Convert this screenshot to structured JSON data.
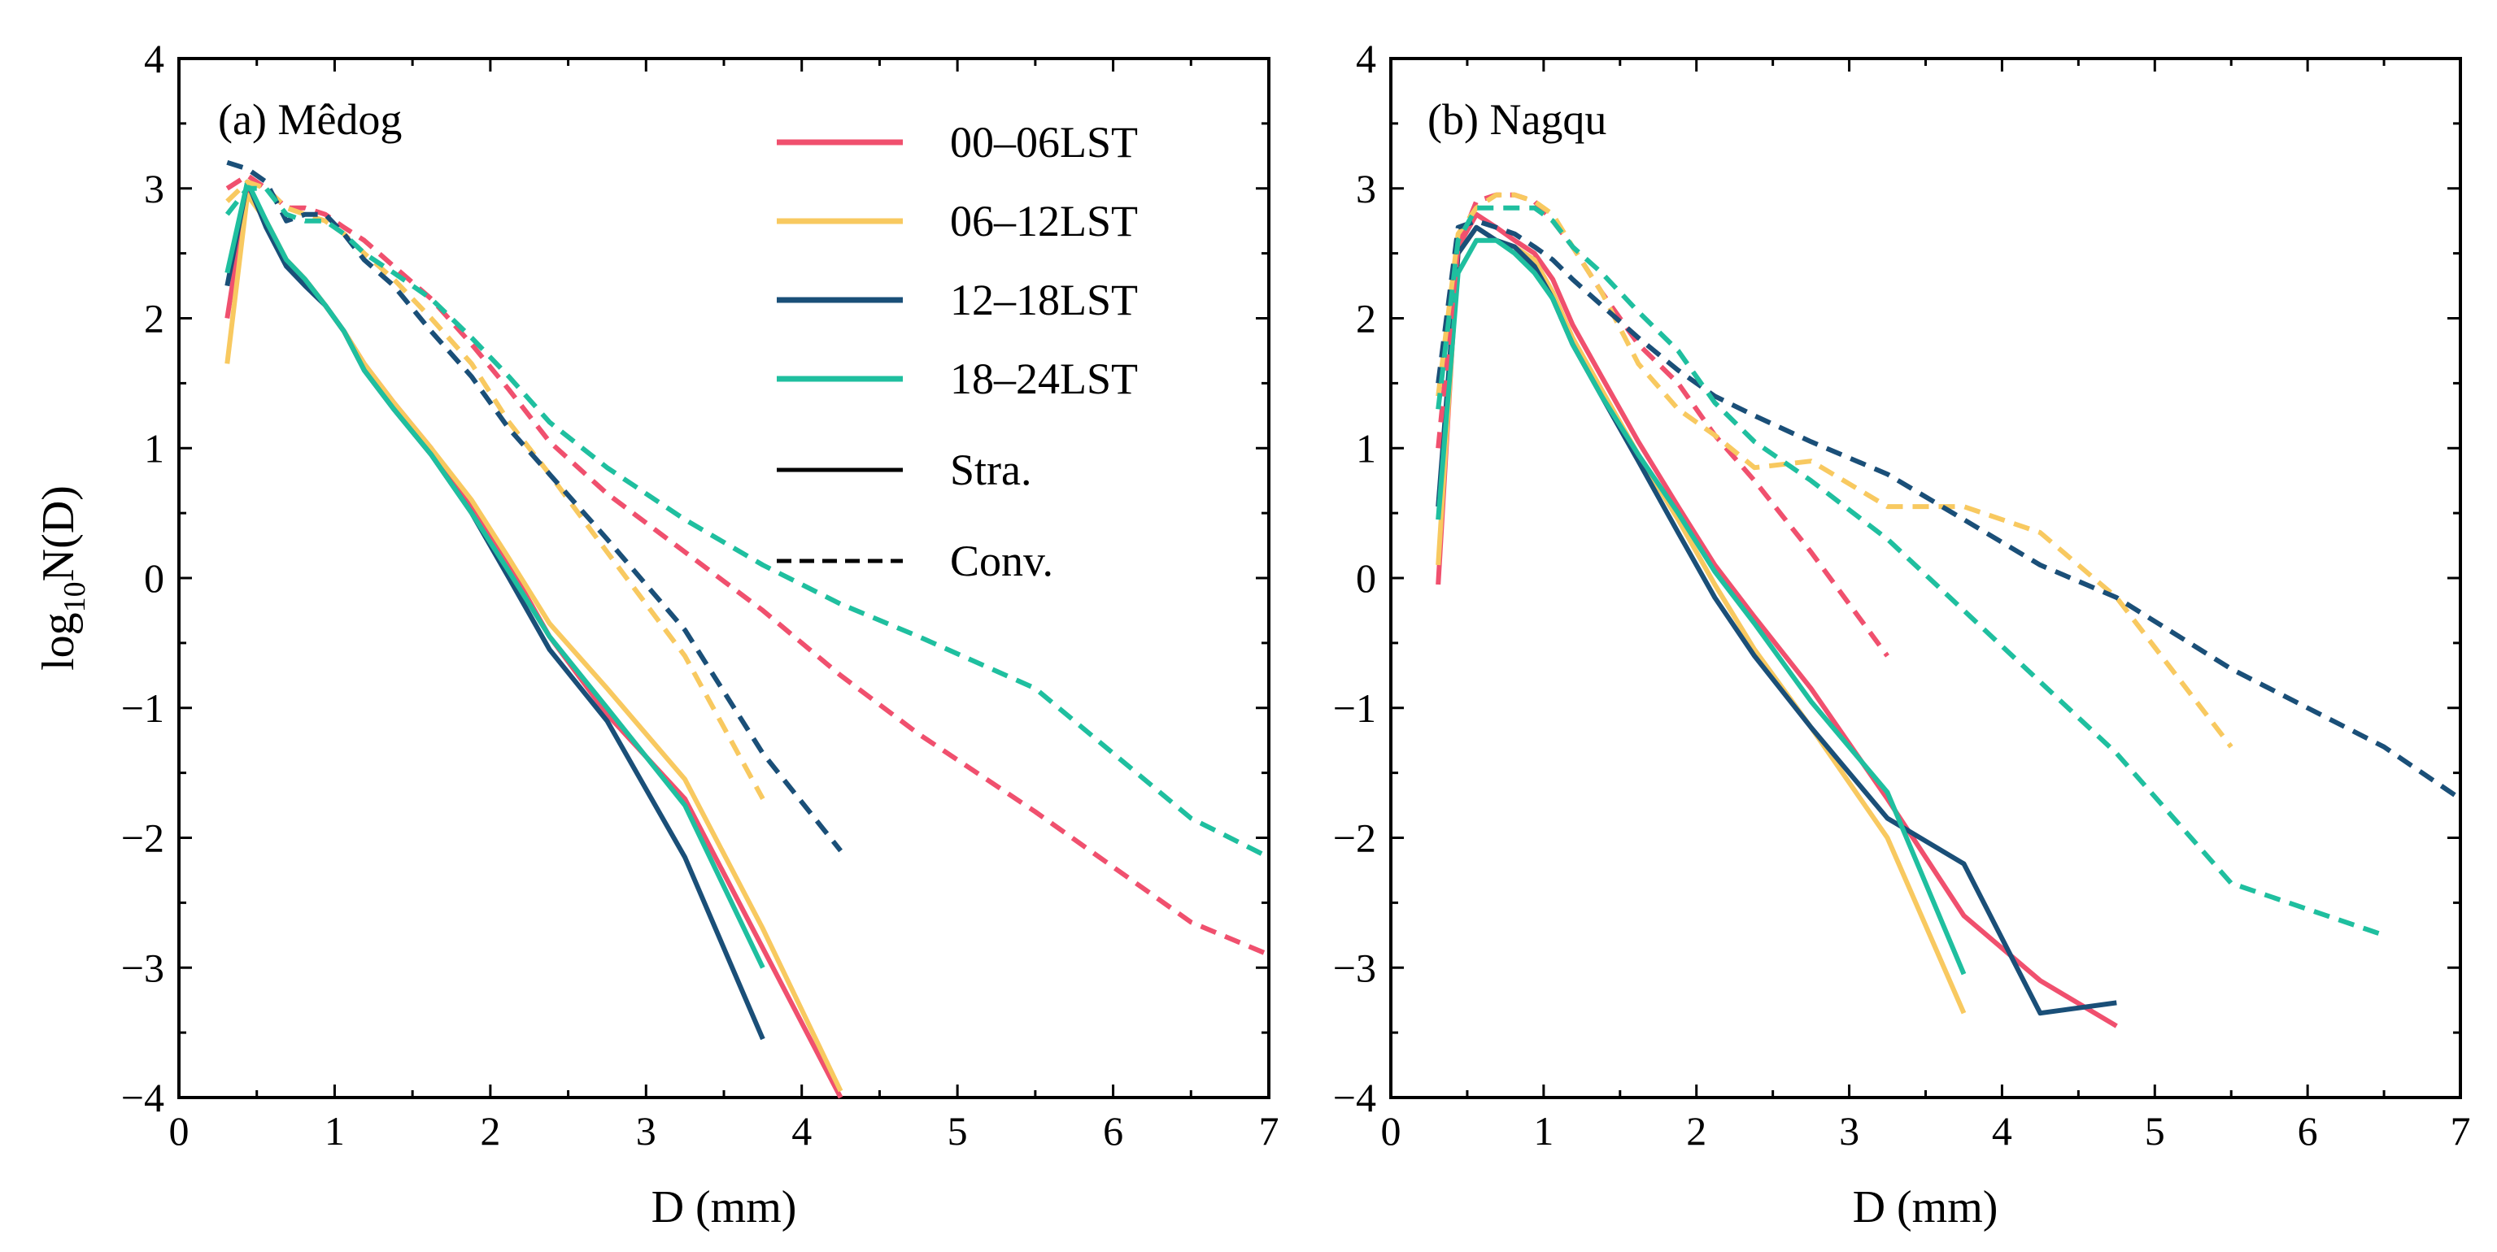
{
  "chart_data": [
    {
      "type": "line",
      "panel": "(a) Mêdog",
      "xlabel": "D (mm)",
      "ylabel_base": "log",
      "ylabel_sub": "10",
      "ylabel_rest": "N(D)",
      "xlim": [
        0,
        7
      ],
      "ylim": [
        -4,
        4
      ],
      "xticks": [
        0,
        1,
        2,
        3,
        4,
        5,
        6,
        7
      ],
      "yticks": [
        -4,
        -3,
        -2,
        -1,
        0,
        1,
        2,
        3,
        4
      ],
      "ytick_labels": [
        "−4",
        "−3",
        "−2",
        "−1",
        "0",
        "1",
        "2",
        "3",
        "4"
      ],
      "legend": [
        {
          "label": "00–06LST",
          "color": "#f0506e",
          "style": "solid"
        },
        {
          "label": "06–12LST",
          "color": "#f8c960",
          "style": "solid"
        },
        {
          "label": "12–18LST",
          "color": "#1a4f78",
          "style": "solid"
        },
        {
          "label": "18–24LST",
          "color": "#1fbf9f",
          "style": "solid"
        },
        {
          "label": "Stra.",
          "color": "#000000",
          "style": "solid"
        },
        {
          "label": "Conv.",
          "color": "#000000",
          "style": "dashed"
        }
      ],
      "series": [
        {
          "name": "00–06LST Stra.",
          "color": "#f0506e",
          "style": "solid",
          "x": [
            0.31,
            0.44,
            0.56,
            0.69,
            0.81,
            0.94,
            1.06,
            1.19,
            1.38,
            1.62,
            1.88,
            2.12,
            2.38,
            2.75,
            3.25,
            3.75,
            4.25
          ],
          "y": [
            2.0,
            3.0,
            2.75,
            2.45,
            2.3,
            2.1,
            1.9,
            1.65,
            1.35,
            1.0,
            0.55,
            0.1,
            -0.45,
            -1.05,
            -1.7,
            -2.85,
            -4.0
          ]
        },
        {
          "name": "06–12LST Stra.",
          "color": "#f8c960",
          "style": "solid",
          "x": [
            0.31,
            0.44,
            0.56,
            0.69,
            0.81,
            0.94,
            1.06,
            1.19,
            1.38,
            1.62,
            1.88,
            2.12,
            2.38,
            2.75,
            3.25,
            3.75,
            4.25
          ],
          "y": [
            1.65,
            2.95,
            2.75,
            2.45,
            2.3,
            2.1,
            1.9,
            1.65,
            1.35,
            1.0,
            0.6,
            0.15,
            -0.35,
            -0.85,
            -1.55,
            -2.7,
            -3.95
          ]
        },
        {
          "name": "12–18LST Stra.",
          "color": "#1a4f78",
          "style": "solid",
          "x": [
            0.31,
            0.44,
            0.56,
            0.69,
            0.81,
            0.94,
            1.06,
            1.19,
            1.38,
            1.62,
            1.88,
            2.12,
            2.38,
            2.75,
            3.25,
            3.75
          ],
          "y": [
            2.25,
            3.05,
            2.7,
            2.4,
            2.25,
            2.1,
            1.9,
            1.6,
            1.3,
            0.95,
            0.5,
            0.0,
            -0.55,
            -1.1,
            -2.15,
            -3.55
          ]
        },
        {
          "name": "18–24LST Stra.",
          "color": "#1fbf9f",
          "style": "solid",
          "x": [
            0.31,
            0.44,
            0.56,
            0.69,
            0.81,
            0.94,
            1.06,
            1.19,
            1.38,
            1.62,
            1.88,
            2.12,
            2.38,
            2.75,
            3.25,
            3.75
          ],
          "y": [
            2.35,
            3.05,
            2.75,
            2.45,
            2.3,
            2.1,
            1.9,
            1.6,
            1.3,
            0.95,
            0.5,
            0.05,
            -0.45,
            -1.0,
            -1.75,
            -3.0
          ]
        },
        {
          "name": "00–06LST Conv.",
          "color": "#f0506e",
          "style": "dashed",
          "x": [
            0.31,
            0.44,
            0.56,
            0.69,
            0.81,
            0.94,
            1.06,
            1.19,
            1.38,
            1.62,
            1.88,
            2.12,
            2.38,
            2.75,
            3.25,
            3.75,
            4.25,
            4.75,
            5.5,
            6.5,
            7.0
          ],
          "y": [
            3.0,
            3.1,
            3.0,
            2.85,
            2.85,
            2.8,
            2.7,
            2.6,
            2.4,
            2.15,
            1.8,
            1.45,
            1.05,
            0.65,
            0.2,
            -0.25,
            -0.75,
            -1.2,
            -1.8,
            -2.65,
            -2.9
          ]
        },
        {
          "name": "06–12LST Conv.",
          "color": "#f8c960",
          "style": "dashed",
          "x": [
            0.31,
            0.44,
            0.56,
            0.69,
            0.81,
            0.94,
            1.06,
            1.19,
            1.38,
            1.62,
            1.88,
            2.12,
            2.38,
            2.75,
            3.25,
            3.75
          ],
          "y": [
            2.9,
            3.05,
            3.0,
            2.85,
            2.8,
            2.75,
            2.65,
            2.5,
            2.3,
            2.0,
            1.65,
            1.2,
            0.8,
            0.2,
            -0.6,
            -1.7
          ]
        },
        {
          "name": "12–18LST Conv.",
          "color": "#1a4f78",
          "style": "dashed",
          "x": [
            0.31,
            0.44,
            0.56,
            0.69,
            0.81,
            0.94,
            1.06,
            1.19,
            1.38,
            1.62,
            1.88,
            2.12,
            2.38,
            2.75,
            3.25,
            3.75,
            4.25
          ],
          "y": [
            3.2,
            3.15,
            3.05,
            2.75,
            2.8,
            2.8,
            2.65,
            2.45,
            2.25,
            1.9,
            1.55,
            1.15,
            0.8,
            0.3,
            -0.4,
            -1.35,
            -2.1
          ]
        },
        {
          "name": "18–24LST Conv.",
          "color": "#1fbf9f",
          "style": "dashed",
          "x": [
            0.31,
            0.44,
            0.56,
            0.69,
            0.81,
            0.94,
            1.06,
            1.19,
            1.38,
            1.62,
            1.88,
            2.12,
            2.38,
            2.75,
            3.25,
            3.75,
            4.25,
            4.75,
            5.5,
            6.5,
            7.0
          ],
          "y": [
            2.8,
            3.0,
            3.0,
            2.8,
            2.75,
            2.75,
            2.65,
            2.5,
            2.35,
            2.15,
            1.85,
            1.55,
            1.2,
            0.85,
            0.45,
            0.1,
            -0.2,
            -0.45,
            -0.85,
            -1.85,
            -2.15
          ]
        }
      ]
    },
    {
      "type": "line",
      "panel": "(b) Nagqu",
      "xlabel": "D (mm)",
      "xlim": [
        0,
        7
      ],
      "ylim": [
        -4,
        4
      ],
      "xticks": [
        0,
        1,
        2,
        3,
        4,
        5,
        6,
        7
      ],
      "yticks": [
        -4,
        -3,
        -2,
        -1,
        0,
        1,
        2,
        3,
        4
      ],
      "ytick_labels": [
        "−4",
        "−3",
        "−2",
        "−1",
        "0",
        "1",
        "2",
        "3",
        "4"
      ],
      "series": [
        {
          "name": "00–06LST Stra.",
          "color": "#f0506e",
          "style": "solid",
          "x": [
            0.31,
            0.44,
            0.56,
            0.69,
            0.81,
            0.94,
            1.06,
            1.19,
            1.38,
            1.62,
            1.88,
            2.12,
            2.38,
            2.75,
            3.25,
            3.75,
            4.25,
            4.75
          ],
          "y": [
            -0.05,
            2.55,
            2.8,
            2.7,
            2.6,
            2.5,
            2.3,
            1.95,
            1.55,
            1.05,
            0.55,
            0.1,
            -0.3,
            -0.85,
            -1.7,
            -2.6,
            -3.1,
            -3.45
          ]
        },
        {
          "name": "06–12LST Stra.",
          "color": "#f8c960",
          "style": "solid",
          "x": [
            0.31,
            0.44,
            0.56,
            0.69,
            0.81,
            0.94,
            1.06,
            1.19,
            1.38,
            1.62,
            1.88,
            2.12,
            2.38,
            2.75,
            3.25,
            3.75
          ],
          "y": [
            0.1,
            2.5,
            2.7,
            2.6,
            2.55,
            2.45,
            2.2,
            1.85,
            1.45,
            0.95,
            0.45,
            -0.05,
            -0.55,
            -1.15,
            -2.0,
            -3.35
          ]
        },
        {
          "name": "12–18LST Stra.",
          "color": "#1a4f78",
          "style": "solid",
          "x": [
            0.31,
            0.44,
            0.56,
            0.69,
            0.81,
            0.94,
            1.06,
            1.19,
            1.38,
            1.62,
            1.88,
            2.12,
            2.38,
            2.75,
            3.25,
            3.75,
            4.25,
            4.75
          ],
          "y": [
            0.55,
            2.5,
            2.7,
            2.6,
            2.55,
            2.4,
            2.15,
            1.8,
            1.4,
            0.9,
            0.35,
            -0.15,
            -0.6,
            -1.15,
            -1.85,
            -2.2,
            -3.35,
            -3.27
          ]
        },
        {
          "name": "18–24LST Stra.",
          "color": "#1fbf9f",
          "style": "solid",
          "x": [
            0.31,
            0.44,
            0.56,
            0.69,
            0.81,
            0.94,
            1.06,
            1.19,
            1.38,
            1.62,
            1.88,
            2.12,
            2.38,
            2.75,
            3.25,
            3.75
          ],
          "y": [
            0.45,
            2.35,
            2.6,
            2.6,
            2.5,
            2.35,
            2.15,
            1.8,
            1.4,
            0.95,
            0.5,
            0.05,
            -0.35,
            -0.95,
            -1.65,
            -3.05
          ]
        },
        {
          "name": "00–06LST Conv.",
          "color": "#f0506e",
          "style": "dashed",
          "x": [
            0.31,
            0.44,
            0.56,
            0.69,
            0.81,
            0.94,
            1.06,
            1.19,
            1.38,
            1.62,
            1.88,
            2.12,
            2.38,
            2.75,
            3.25
          ],
          "y": [
            1.0,
            2.55,
            2.9,
            2.95,
            2.95,
            2.9,
            2.75,
            2.55,
            2.2,
            1.8,
            1.5,
            1.1,
            0.75,
            0.2,
            -0.6
          ]
        },
        {
          "name": "06–12LST Conv.",
          "color": "#f8c960",
          "style": "dashed",
          "x": [
            0.31,
            0.44,
            0.56,
            0.69,
            0.81,
            0.94,
            1.06,
            1.19,
            1.38,
            1.62,
            1.88,
            2.12,
            2.38,
            2.75,
            3.25,
            3.75,
            4.25,
            4.75,
            5.5
          ],
          "y": [
            1.4,
            2.65,
            2.85,
            2.95,
            2.95,
            2.9,
            2.8,
            2.55,
            2.2,
            1.65,
            1.3,
            1.1,
            0.85,
            0.9,
            0.55,
            0.55,
            0.35,
            -0.15,
            -1.3
          ]
        },
        {
          "name": "12–18LST Conv.",
          "color": "#1a4f78",
          "style": "dashed",
          "x": [
            0.31,
            0.44,
            0.56,
            0.69,
            0.81,
            0.94,
            1.06,
            1.19,
            1.38,
            1.62,
            1.88,
            2.12,
            2.38,
            2.75,
            3.25,
            3.75,
            4.25,
            4.75,
            5.5,
            6.5,
            7.0
          ],
          "y": [
            1.5,
            2.7,
            2.75,
            2.7,
            2.65,
            2.55,
            2.45,
            2.3,
            2.1,
            1.85,
            1.6,
            1.4,
            1.25,
            1.05,
            0.8,
            0.45,
            0.1,
            -0.15,
            -0.7,
            -1.3,
            -1.7
          ]
        },
        {
          "name": "18–24LST Conv.",
          "color": "#1fbf9f",
          "style": "dashed",
          "x": [
            0.31,
            0.44,
            0.56,
            0.69,
            0.81,
            0.94,
            1.06,
            1.19,
            1.38,
            1.62,
            1.88,
            2.12,
            2.38,
            2.75,
            3.25,
            3.75,
            4.25,
            4.75,
            5.5,
            6.5
          ],
          "y": [
            1.3,
            2.6,
            2.85,
            2.85,
            2.85,
            2.85,
            2.75,
            2.55,
            2.35,
            2.05,
            1.75,
            1.35,
            1.05,
            0.75,
            0.3,
            -0.25,
            -0.8,
            -1.35,
            -2.35,
            -2.75
          ]
        }
      ]
    }
  ]
}
